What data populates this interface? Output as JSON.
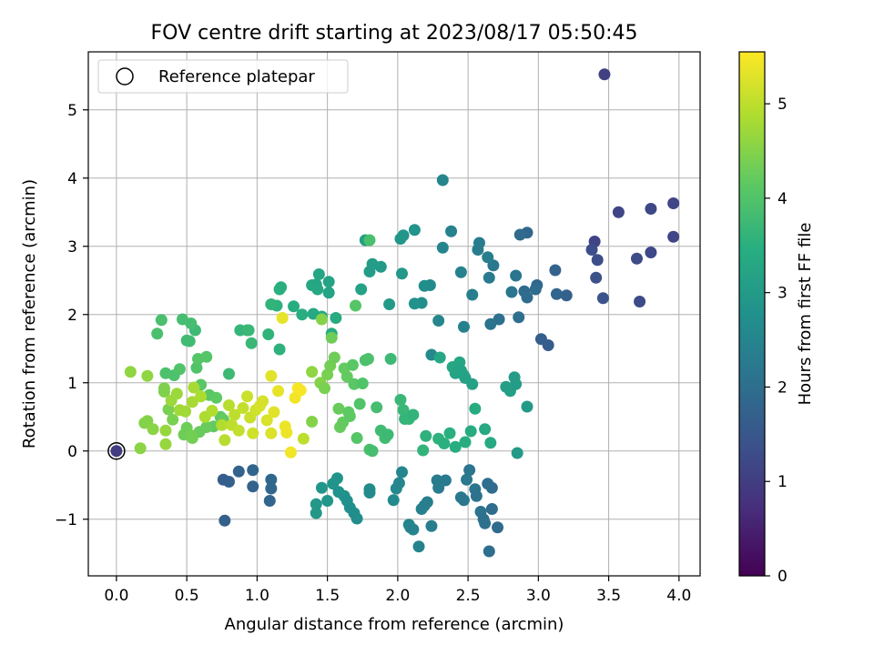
{
  "chart_data": {
    "type": "scatter",
    "title": "FOV centre drift starting at 2023/08/17 05:50:45",
    "xlabel": "Angular distance from reference (arcmin)",
    "ylabel": "Rotation from reference (arcmin)",
    "xlim": [
      -0.2,
      4.15
    ],
    "ylim": [
      -1.83,
      5.85
    ],
    "xticks": [
      0.0,
      0.5,
      1.0,
      1.5,
      2.0,
      2.5,
      3.0,
      3.5,
      4.0
    ],
    "xtick_labels": [
      "0.0",
      "0.5",
      "1.0",
      "1.5",
      "2.0",
      "2.5",
      "3.0",
      "3.5",
      "4.0"
    ],
    "yticks": [
      -1,
      0,
      1,
      2,
      3,
      4,
      5
    ],
    "ytick_labels": [
      "−1",
      "0",
      "1",
      "2",
      "3",
      "4",
      "5"
    ],
    "grid": true,
    "legend": {
      "position": "top-left",
      "entries": [
        "Reference platepar"
      ]
    },
    "colormap": "viridis",
    "colorbar": {
      "label": "Hours from first FF file",
      "range": [
        0,
        5.55
      ],
      "ticks": [
        0,
        1,
        2,
        3,
        4,
        5
      ],
      "tick_labels": [
        "0",
        "1",
        "2",
        "3",
        "4",
        "5"
      ]
    },
    "reference_point": {
      "x": 0.0,
      "y": 0.0
    },
    "points": [
      [
        0.0,
        0.0,
        1.0
      ],
      [
        3.47,
        5.52,
        1.05
      ],
      [
        3.4,
        3.07,
        1.1
      ],
      [
        3.96,
        3.63,
        1.15
      ],
      [
        3.96,
        3.14,
        1.15
      ],
      [
        3.57,
        3.5,
        1.15
      ],
      [
        3.8,
        3.55,
        1.2
      ],
      [
        3.8,
        2.91,
        1.2
      ],
      [
        3.7,
        2.82,
        1.25
      ],
      [
        3.72,
        2.19,
        1.25
      ],
      [
        3.38,
        2.95,
        1.3
      ],
      [
        3.42,
        2.8,
        1.3
      ],
      [
        3.41,
        2.54,
        1.35
      ],
      [
        3.46,
        2.24,
        1.4
      ],
      [
        3.07,
        1.55,
        1.6
      ],
      [
        3.02,
        1.64,
        1.65
      ],
      [
        3.2,
        2.28,
        1.7
      ],
      [
        3.12,
        2.65,
        1.75
      ],
      [
        3.13,
        2.3,
        1.8
      ],
      [
        2.99,
        2.43,
        1.85
      ],
      [
        2.92,
        3.2,
        1.85
      ],
      [
        2.87,
        3.17,
        1.9
      ],
      [
        2.9,
        2.34,
        1.9
      ],
      [
        2.98,
        2.37,
        1.95
      ],
      [
        2.92,
        2.25,
        1.95
      ],
      [
        2.86,
        1.96,
        2.0
      ],
      [
        2.72,
        1.93,
        2.05
      ],
      [
        2.66,
        1.86,
        2.1
      ],
      [
        2.81,
        2.33,
        2.15
      ],
      [
        2.84,
        2.57,
        2.15
      ],
      [
        2.68,
        2.72,
        2.2
      ],
      [
        2.65,
        2.54,
        2.25
      ],
      [
        2.58,
        3.05,
        2.3
      ],
      [
        2.57,
        2.95,
        2.3
      ],
      [
        2.53,
        2.29,
        2.35
      ],
      [
        2.64,
        2.84,
        2.35
      ],
      [
        2.47,
        1.82,
        2.4
      ],
      [
        2.45,
        2.62,
        2.45
      ],
      [
        2.38,
        3.22,
        2.45
      ],
      [
        2.32,
        3.97,
        2.5
      ],
      [
        2.32,
        2.98,
        2.5
      ],
      [
        2.29,
        1.91,
        2.55
      ],
      [
        2.24,
        1.41,
        2.6
      ],
      [
        2.23,
        2.43,
        2.65
      ],
      [
        2.19,
        2.42,
        2.7
      ],
      [
        2.17,
        2.17,
        2.75
      ],
      [
        2.12,
        2.16,
        2.8
      ],
      [
        2.12,
        3.24,
        2.85
      ],
      [
        2.04,
        3.16,
        2.9
      ],
      [
        2.02,
        3.11,
        2.9
      ],
      [
        2.03,
        2.6,
        2.95
      ],
      [
        1.94,
        2.15,
        3.0
      ],
      [
        1.88,
        2.7,
        3.0
      ],
      [
        1.82,
        2.74,
        3.05
      ],
      [
        1.8,
        2.63,
        3.05
      ],
      [
        1.77,
        3.09,
        3.1
      ],
      [
        1.74,
        2.37,
        3.15
      ],
      [
        1.51,
        2.48,
        3.2
      ],
      [
        1.51,
        2.32,
        3.2
      ],
      [
        1.44,
        2.59,
        3.25
      ],
      [
        1.42,
        2.44,
        3.25
      ],
      [
        1.43,
        2.37,
        3.3
      ],
      [
        1.39,
        2.43,
        3.3
      ],
      [
        1.4,
        2.01,
        3.35
      ],
      [
        1.46,
        1.97,
        3.35
      ],
      [
        1.56,
        1.95,
        3.4
      ],
      [
        1.53,
        1.72,
        3.4
      ],
      [
        1.32,
        2.0,
        3.45
      ],
      [
        1.26,
        2.12,
        3.45
      ],
      [
        1.17,
        2.4,
        3.5
      ],
      [
        1.16,
        2.37,
        3.5
      ],
      [
        1.14,
        2.13,
        3.55
      ],
      [
        1.16,
        1.49,
        3.55
      ],
      [
        1.1,
        2.15,
        3.6
      ],
      [
        1.08,
        1.71,
        3.6
      ],
      [
        0.93,
        1.77,
        3.65
      ],
      [
        0.88,
        1.77,
        3.65
      ],
      [
        0.96,
        1.58,
        3.7
      ],
      [
        0.94,
        1.77,
        3.7
      ],
      [
        0.8,
        1.13,
        3.75
      ],
      [
        0.56,
        1.77,
        3.75
      ],
      [
        0.52,
        1.61,
        3.8
      ],
      [
        0.5,
        1.62,
        3.8
      ],
      [
        0.47,
        1.93,
        3.85
      ],
      [
        0.53,
        1.87,
        3.85
      ],
      [
        0.32,
        1.92,
        3.9
      ],
      [
        0.29,
        1.72,
        3.9
      ],
      [
        0.35,
        1.14,
        3.95
      ],
      [
        0.41,
        1.11,
        3.95
      ],
      [
        0.45,
        1.2,
        4.0
      ],
      [
        0.57,
        1.22,
        4.0
      ],
      [
        0.58,
        1.35,
        4.05
      ],
      [
        0.64,
        1.38,
        4.05
      ],
      [
        0.6,
        0.97,
        4.1
      ],
      [
        0.66,
        0.82,
        4.1
      ],
      [
        0.71,
        0.78,
        4.15
      ],
      [
        0.74,
        0.5,
        4.15
      ],
      [
        0.76,
        0.46,
        4.2
      ],
      [
        0.69,
        0.36,
        4.2
      ],
      [
        0.64,
        0.35,
        4.25
      ],
      [
        0.59,
        0.28,
        4.25
      ],
      [
        0.5,
        0.34,
        4.3
      ],
      [
        0.48,
        0.24,
        4.3
      ],
      [
        0.53,
        0.23,
        4.35
      ],
      [
        0.54,
        0.19,
        4.35
      ],
      [
        0.4,
        0.46,
        4.4
      ],
      [
        0.37,
        0.61,
        4.4
      ],
      [
        0.34,
        0.87,
        4.45
      ],
      [
        0.34,
        0.92,
        4.45
      ],
      [
        0.22,
        0.44,
        4.5
      ],
      [
        0.2,
        0.41,
        4.5
      ],
      [
        0.26,
        0.32,
        4.55
      ],
      [
        0.17,
        0.04,
        4.55
      ],
      [
        0.1,
        1.16,
        4.6
      ],
      [
        0.22,
        1.1,
        4.6
      ],
      [
        0.35,
        0.1,
        4.65
      ],
      [
        0.35,
        0.3,
        4.65
      ],
      [
        0.39,
        0.74,
        4.7
      ],
      [
        0.43,
        0.84,
        4.7
      ],
      [
        0.45,
        0.6,
        4.75
      ],
      [
        0.49,
        0.58,
        4.75
      ],
      [
        0.54,
        0.72,
        4.8
      ],
      [
        0.55,
        0.93,
        4.8
      ],
      [
        0.6,
        0.8,
        4.85
      ],
      [
        0.63,
        0.5,
        4.85
      ],
      [
        0.68,
        0.59,
        4.9
      ],
      [
        0.75,
        0.38,
        4.9
      ],
      [
        0.77,
        0.16,
        4.95
      ],
      [
        0.8,
        0.67,
        4.95
      ],
      [
        0.82,
        0.38,
        5.0
      ],
      [
        0.84,
        0.53,
        5.0
      ],
      [
        0.87,
        0.3,
        5.05
      ],
      [
        0.9,
        0.63,
        5.05
      ],
      [
        0.93,
        0.8,
        5.1
      ],
      [
        0.95,
        0.49,
        5.1
      ],
      [
        0.97,
        0.26,
        5.15
      ],
      [
        0.99,
        0.6,
        5.15
      ],
      [
        1.02,
        0.66,
        5.2
      ],
      [
        1.04,
        0.73,
        5.2
      ],
      [
        1.07,
        0.45,
        5.25
      ],
      [
        1.1,
        0.26,
        5.25
      ],
      [
        1.1,
        1.1,
        5.3
      ],
      [
        1.12,
        0.57,
        5.3
      ],
      [
        1.15,
        0.88,
        5.35
      ],
      [
        1.18,
        1.95,
        5.35
      ],
      [
        1.2,
        0.36,
        5.4
      ],
      [
        1.21,
        0.27,
        5.4
      ],
      [
        1.24,
        -0.02,
        5.45
      ],
      [
        1.27,
        0.78,
        5.45
      ],
      [
        1.29,
        0.92,
        5.5
      ],
      [
        1.31,
        0.89,
        5.5
      ],
      [
        1.33,
        0.18,
        5.0
      ],
      [
        1.39,
        1.16,
        4.6
      ],
      [
        1.39,
        0.43,
        4.5
      ],
      [
        1.45,
        1.0,
        4.5
      ],
      [
        1.46,
        1.93,
        4.5
      ],
      [
        1.48,
        0.92,
        4.4
      ],
      [
        1.5,
        1.12,
        4.4
      ],
      [
        1.52,
        1.25,
        4.35
      ],
      [
        1.53,
        1.66,
        4.3
      ],
      [
        1.55,
        1.37,
        4.3
      ],
      [
        1.58,
        0.62,
        4.25
      ],
      [
        1.59,
        0.35,
        4.25
      ],
      [
        1.61,
        0.42,
        4.2
      ],
      [
        1.62,
        1.21,
        4.2
      ],
      [
        1.64,
        1.09,
        4.2
      ],
      [
        1.65,
        0.57,
        4.15
      ],
      [
        1.66,
        0.51,
        4.15
      ],
      [
        1.68,
        1.26,
        4.1
      ],
      [
        1.69,
        0.98,
        4.1
      ],
      [
        1.7,
        2.13,
        4.05
      ],
      [
        1.71,
        0.19,
        4.05
      ],
      [
        1.73,
        0.69,
        4.0
      ],
      [
        1.75,
        0.99,
        4.0
      ],
      [
        1.77,
        1.33,
        3.95
      ],
      [
        1.79,
        1.35,
        3.95
      ],
      [
        1.8,
        3.09,
        3.9
      ],
      [
        1.8,
        0.02,
        3.9
      ],
      [
        1.82,
        0.0,
        3.85
      ],
      [
        1.85,
        0.64,
        3.85
      ],
      [
        1.88,
        0.3,
        3.8
      ],
      [
        1.91,
        0.19,
        3.8
      ],
      [
        1.93,
        0.24,
        3.75
      ],
      [
        1.95,
        1.35,
        3.75
      ],
      [
        2.02,
        0.75,
        3.7
      ],
      [
        2.04,
        0.6,
        3.7
      ],
      [
        2.05,
        0.47,
        3.65
      ],
      [
        2.08,
        0.47,
        3.65
      ],
      [
        2.11,
        0.53,
        3.6
      ],
      [
        2.18,
        0.01,
        3.6
      ],
      [
        2.2,
        0.22,
        3.55
      ],
      [
        2.29,
        0.18,
        3.55
      ],
      [
        2.33,
        0.11,
        3.5
      ],
      [
        2.37,
        0.26,
        3.5
      ],
      [
        2.41,
        0.06,
        3.45
      ],
      [
        2.48,
        0.13,
        3.45
      ],
      [
        2.52,
        0.29,
        3.4
      ],
      [
        2.55,
        0.62,
        3.4
      ],
      [
        2.62,
        0.32,
        3.35
      ],
      [
        2.66,
        0.12,
        3.35
      ],
      [
        2.3,
        1.37,
        3.3
      ],
      [
        2.39,
        1.23,
        3.3
      ],
      [
        2.41,
        1.14,
        3.25
      ],
      [
        2.44,
        1.3,
        3.25
      ],
      [
        2.45,
        1.18,
        3.2
      ],
      [
        2.47,
        1.11,
        3.2
      ],
      [
        2.48,
        1.07,
        3.15
      ],
      [
        2.53,
        0.98,
        3.15
      ],
      [
        2.77,
        0.94,
        3.1
      ],
      [
        2.8,
        0.88,
        3.1
      ],
      [
        2.83,
        1.08,
        3.05
      ],
      [
        2.84,
        0.98,
        3.05
      ],
      [
        2.85,
        -0.03,
        3.0
      ],
      [
        2.92,
        0.65,
        3.0
      ],
      [
        1.42,
        -0.91,
        2.95
      ],
      [
        1.42,
        -0.78,
        2.95
      ],
      [
        1.46,
        -0.54,
        2.9
      ],
      [
        1.5,
        -0.73,
        2.9
      ],
      [
        1.54,
        -0.48,
        2.85
      ],
      [
        1.57,
        -0.4,
        2.85
      ],
      [
        1.58,
        -0.6,
        2.8
      ],
      [
        1.62,
        -0.66,
        2.8
      ],
      [
        1.64,
        -0.73,
        2.75
      ],
      [
        1.66,
        -0.83,
        2.75
      ],
      [
        1.69,
        -0.91,
        2.7
      ],
      [
        1.71,
        -0.99,
        2.7
      ],
      [
        1.8,
        -0.56,
        2.65
      ],
      [
        1.8,
        -0.61,
        2.65
      ],
      [
        1.97,
        -0.72,
        2.6
      ],
      [
        1.99,
        -0.55,
        2.6
      ],
      [
        2.01,
        -0.47,
        2.55
      ],
      [
        2.03,
        -0.31,
        2.55
      ],
      [
        2.08,
        -1.08,
        2.5
      ],
      [
        2.09,
        -1.12,
        2.5
      ],
      [
        2.11,
        -1.15,
        2.45
      ],
      [
        2.15,
        -1.4,
        2.45
      ],
      [
        2.17,
        -0.85,
        2.4
      ],
      [
        2.19,
        -0.8,
        2.4
      ],
      [
        2.21,
        -0.75,
        2.35
      ],
      [
        2.24,
        -1.1,
        2.35
      ],
      [
        2.28,
        -0.43,
        2.3
      ],
      [
        2.29,
        -0.54,
        2.3
      ],
      [
        2.34,
        -0.43,
        2.25
      ],
      [
        2.45,
        -0.68,
        2.25
      ],
      [
        2.47,
        -0.72,
        2.2
      ],
      [
        2.49,
        -0.42,
        2.2
      ],
      [
        2.51,
        -0.28,
        2.15
      ],
      [
        2.55,
        -0.56,
        2.15
      ],
      [
        2.56,
        -0.66,
        2.1
      ],
      [
        2.59,
        -0.89,
        2.1
      ],
      [
        2.61,
        -1.0,
        2.05
      ],
      [
        2.62,
        -1.06,
        2.05
      ],
      [
        2.64,
        -0.48,
        2.0
      ],
      [
        2.65,
        -1.47,
        2.0
      ],
      [
        2.67,
        -0.54,
        1.95
      ],
      [
        2.67,
        -0.85,
        1.95
      ],
      [
        2.71,
        -1.12,
        1.9
      ],
      [
        1.1,
        -0.42,
        1.85
      ],
      [
        1.1,
        -0.55,
        1.85
      ],
      [
        1.09,
        -0.73,
        1.8
      ],
      [
        0.97,
        -0.28,
        1.8
      ],
      [
        0.97,
        -0.52,
        1.75
      ],
      [
        0.87,
        -0.3,
        1.75
      ],
      [
        0.8,
        -0.45,
        1.7
      ],
      [
        0.77,
        -1.02,
        1.7
      ],
      [
        0.76,
        -0.42,
        1.65
      ]
    ]
  }
}
